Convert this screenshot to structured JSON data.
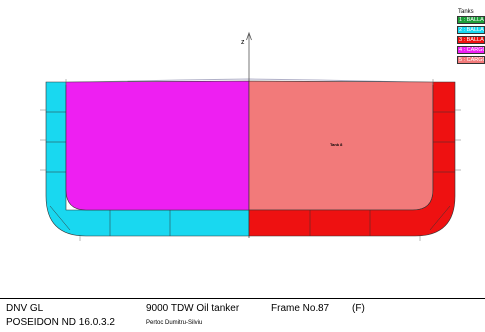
{
  "drawing": {
    "axis_label": "z",
    "tank_label": "Tank 8"
  },
  "legend": {
    "title": "Tanks",
    "items": [
      {
        "label": "1 : BALLAST",
        "color": "#1e9e3a"
      },
      {
        "label": "2 : BALLAST",
        "color": "#19d8f0"
      },
      {
        "label": "3 : BALLAST",
        "color": "#ee1111"
      },
      {
        "label": "4 : CARGO",
        "color": "#ee1ff2"
      },
      {
        "label": "5 : CARGO",
        "color": "#f27a7a"
      }
    ]
  },
  "footer": {
    "company": "DNV GL",
    "software": "POSEIDON ND 16.0.3.2",
    "project": "9000 TDW Oil tanker",
    "author": "Pertoc Dumitru-Silviu",
    "frame_label": "Frame No.:",
    "frame_number": "87",
    "frame_suffix": "(F)"
  }
}
